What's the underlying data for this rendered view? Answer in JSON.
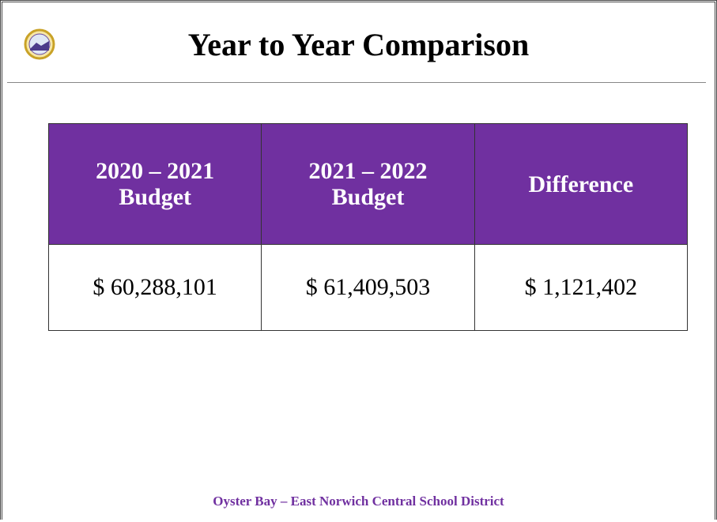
{
  "header": {
    "title": "Year to Year Comparison"
  },
  "table": {
    "columns": [
      "2020 – 2021 Budget",
      "2021 – 2022 Budget",
      "Difference"
    ],
    "rows": [
      [
        "$ 60,288,101",
        "$ 61,409,503",
        "$ 1,121,402"
      ]
    ]
  },
  "footer": "Oyster Bay – East Norwich Central School District"
}
